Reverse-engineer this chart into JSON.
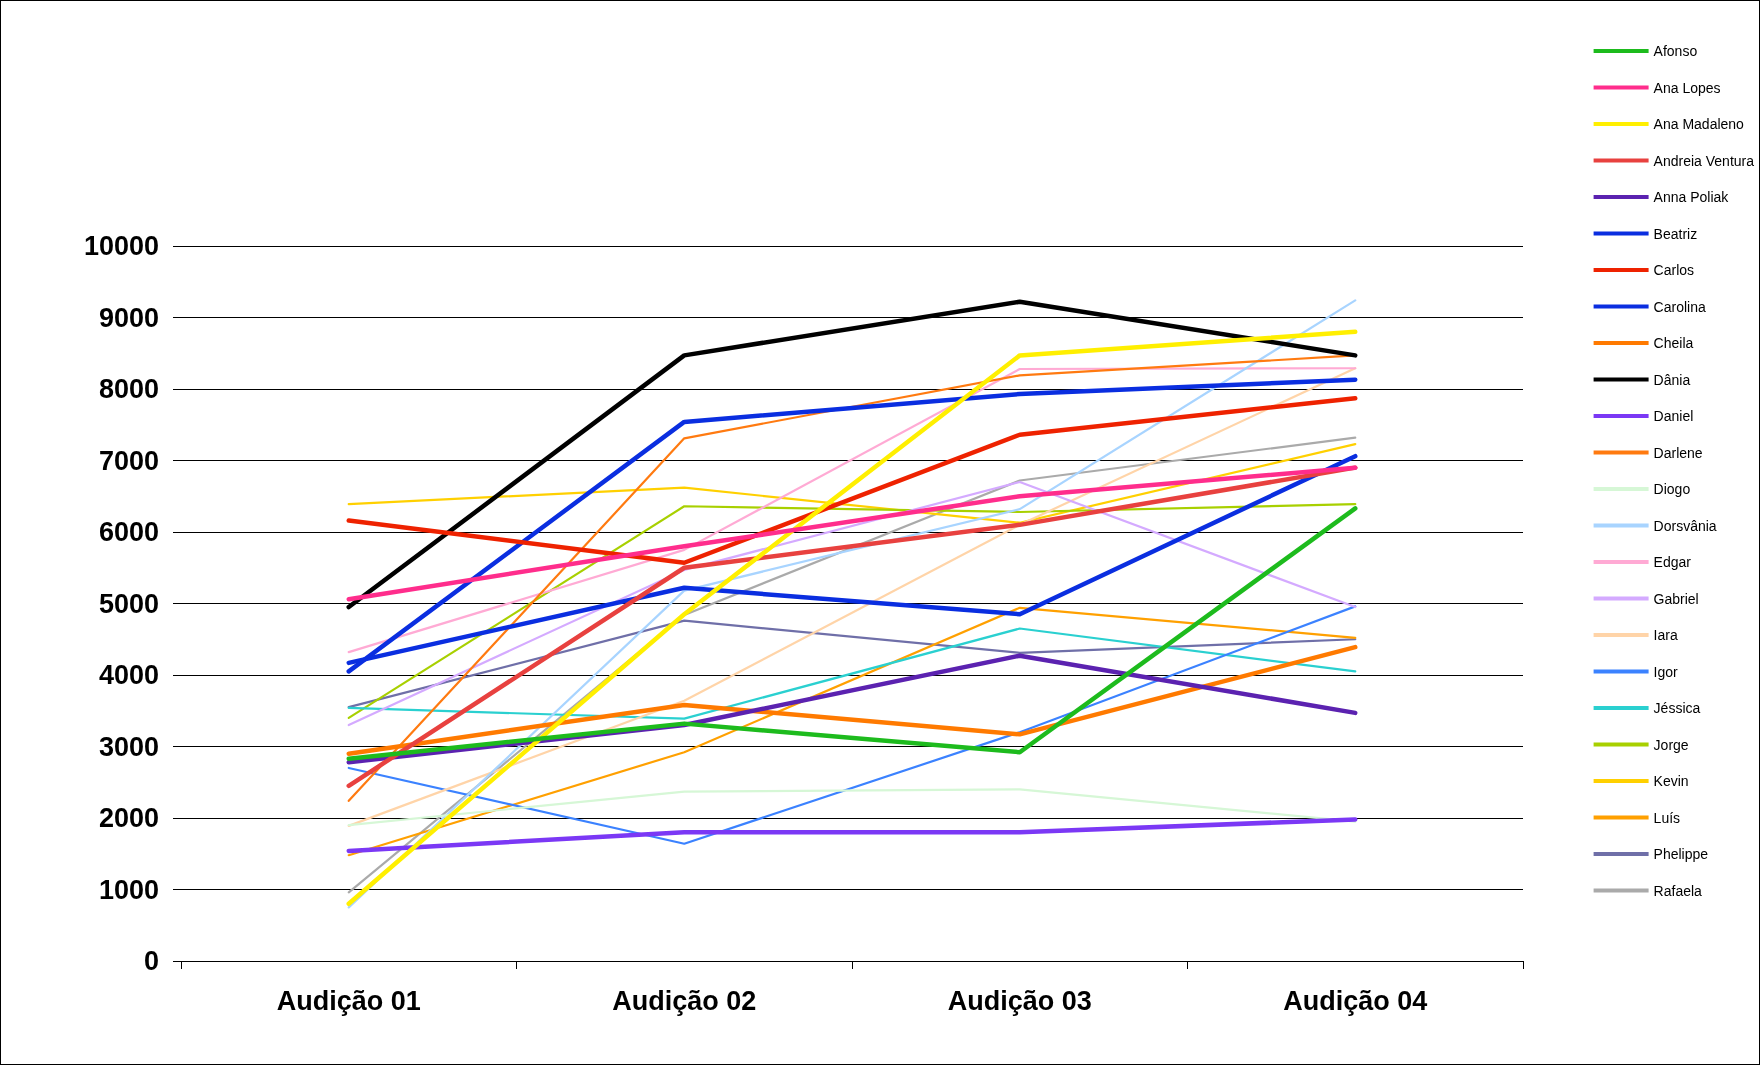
{
  "chart_data": {
    "type": "line",
    "categories": [
      "Audição 01",
      "Audição 02",
      "Audição 03",
      "Audição 04"
    ],
    "ylim": [
      0,
      10000
    ],
    "yticks": [
      0,
      1000,
      2000,
      3000,
      4000,
      5000,
      6000,
      7000,
      8000,
      9000,
      10000
    ],
    "grid": "y",
    "legend": "right",
    "marker": "none",
    "line_style": "solid",
    "series": [
      {
        "name": "Afonso",
        "color": "#1dbb1d",
        "values": [
          2830,
          3320,
          2920,
          6330
        ]
      },
      {
        "name": "Ana Lopes",
        "color": "#ff2d8c",
        "values": [
          5060,
          5800,
          6500,
          6900
        ]
      },
      {
        "name": "Ana Madaleno",
        "color": "#ffef00",
        "values": [
          800,
          4850,
          8470,
          8800
        ]
      },
      {
        "name": "Andreia Ventura",
        "color": "#e8413f",
        "values": [
          2450,
          5500,
          6100,
          6900
        ]
      },
      {
        "name": "Anna Poliak",
        "color": "#5b22b0",
        "values": [
          2780,
          3300,
          4270,
          3470
        ]
      },
      {
        "name": "Beatriz",
        "color": "#0a2ee0",
        "values": [
          4170,
          5220,
          4850,
          7060
        ]
      },
      {
        "name": "Carlos",
        "color": "#ee2200",
        "values": [
          6160,
          5570,
          7360,
          7870
        ]
      },
      {
        "name": "Carolina",
        "color": "#0a2ee0",
        "values": [
          4050,
          7540,
          7930,
          8130
        ]
      },
      {
        "name": "Cheila",
        "color": "#ff7a00",
        "values": [
          2900,
          3580,
          3170,
          4390
        ]
      },
      {
        "name": "Dânia",
        "color": "#000000",
        "values": [
          4950,
          8470,
          9220,
          8470
        ]
      },
      {
        "name": "Daniel",
        "color": "#7b38f5",
        "values": [
          1540,
          1800,
          1800,
          1980
        ]
      },
      {
        "name": "Darlene",
        "color": "#ff7a10",
        "values": [
          2240,
          7310,
          8190,
          8470
        ]
      },
      {
        "name": "Diogo",
        "color": "#d6f7d6",
        "values": [
          1900,
          2370,
          2400,
          1950
        ]
      },
      {
        "name": "Dorsvânia",
        "color": "#a8d4ff",
        "values": [
          750,
          5180,
          6320,
          9240
        ]
      },
      {
        "name": "Edgar",
        "color": "#ffaad4",
        "values": [
          4320,
          5750,
          8280,
          8290
        ]
      },
      {
        "name": "Gabriel",
        "color": "#d4aaff",
        "values": [
          3300,
          5470,
          6700,
          4950
        ]
      },
      {
        "name": "Iara",
        "color": "#ffd4a8",
        "values": [
          1890,
          3640,
          6100,
          8290
        ]
      },
      {
        "name": "Igor",
        "color": "#3b82ff",
        "values": [
          2700,
          1640,
          3200,
          4960
        ]
      },
      {
        "name": "Jéssica",
        "color": "#2ad0d0",
        "values": [
          3540,
          3390,
          4650,
          4050
        ]
      },
      {
        "name": "Jorge",
        "color": "#a8d000",
        "values": [
          3400,
          6360,
          6280,
          6390
        ]
      },
      {
        "name": "Kevin",
        "color": "#ffd000",
        "values": [
          6390,
          6620,
          6130,
          7230
        ]
      },
      {
        "name": "Luís",
        "color": "#ffa000",
        "values": [
          1480,
          2920,
          4940,
          4520
        ]
      },
      {
        "name": "Phelippe",
        "color": "#6f6fa8",
        "values": [
          3550,
          4760,
          4310,
          4500
        ]
      },
      {
        "name": "Rafaela",
        "color": "#aaaaaa",
        "values": [
          960,
          4840,
          6720,
          7320
        ]
      }
    ]
  }
}
